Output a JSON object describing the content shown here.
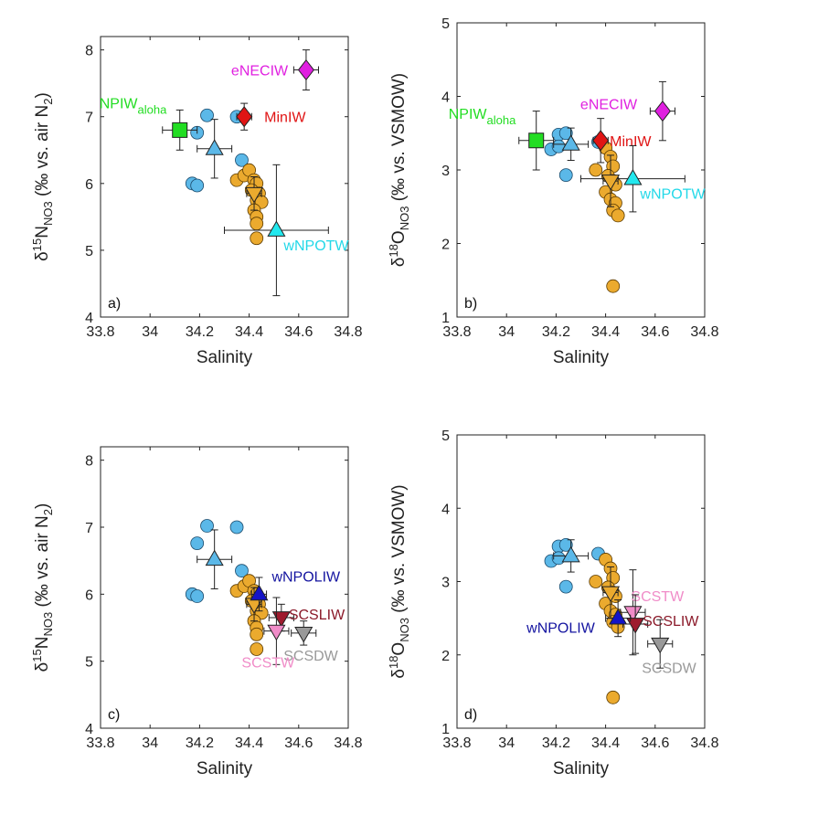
{
  "colors": {
    "orange_points": "#EBAA2E",
    "blue_points": "#5BB8E8",
    "NPIW_aloha": "#22DD22",
    "MinIW": "#E01414",
    "eNECIW": "#E020E0",
    "wNPOTW": "#22E8EE",
    "wNPOLIW": "#1414C8",
    "SCSLIW": "#9E1B2E",
    "SCSDW": "#999999",
    "SCSTW": "#F08CC8",
    "label_NPIW": "#22DD22",
    "label_MinIW": "#E01414",
    "label_eNECIW": "#E020E0",
    "label_wNPOTW": "#22D8E8",
    "label_wNPOLIW": "#1414A0",
    "label_SCSLIW": "#8B1A2A",
    "label_SCSDW": "#999999",
    "label_SCSTW": "#F08CC8"
  },
  "chart_data": [
    {
      "type": "scatter",
      "panel_label": "a)",
      "xlabel": "Salinity",
      "ylabel": {
        "pre": "δ",
        "sup": "15",
        "main": "N",
        "sub": "NO3",
        "unit": " (‰ vs. air N",
        "unit_sub": "2",
        "close": ")"
      },
      "xlim": [
        33.8,
        34.8
      ],
      "ylim": [
        4,
        8.2
      ],
      "xticks": [
        "33.8",
        "34",
        "34.2",
        "34.4",
        "34.6",
        "34.8"
      ],
      "yticks": [
        "4",
        "5",
        "6",
        "7",
        "8"
      ],
      "orange_points": [
        [
          34.35,
          6.05
        ],
        [
          34.38,
          6.12
        ],
        [
          34.4,
          6.2
        ],
        [
          34.42,
          6.05
        ],
        [
          34.43,
          6.0
        ],
        [
          34.41,
          5.9
        ],
        [
          34.44,
          5.85
        ],
        [
          34.43,
          5.75
        ],
        [
          34.45,
          5.72
        ],
        [
          34.42,
          5.6
        ],
        [
          34.43,
          5.5
        ],
        [
          34.43,
          5.4
        ],
        [
          34.43,
          5.18
        ]
      ],
      "blue_points": [
        [
          34.23,
          7.02
        ],
        [
          34.19,
          6.76
        ],
        [
          34.35,
          7.0
        ],
        [
          34.37,
          6.35
        ],
        [
          34.17,
          6.0
        ],
        [
          34.19,
          5.97
        ]
      ],
      "endmembers": [
        {
          "name": "NPIW",
          "sub": "aloha",
          "shape": "square",
          "color_key": "NPIW_aloha",
          "x": 34.12,
          "y": 6.8,
          "xerr": 0.07,
          "yerr": 0.3,
          "label_color_key": "label_NPIW"
        },
        {
          "name": "MinIW",
          "shape": "diamond",
          "color_key": "MinIW",
          "x": 34.38,
          "y": 7.0,
          "xerr": 0.03,
          "yerr": 0.2,
          "label_color_key": "label_MinIW"
        },
        {
          "name": "eNECIW",
          "shape": "diamond",
          "color_key": "eNECIW",
          "x": 34.63,
          "y": 7.7,
          "xerr": 0.05,
          "yerr": 0.3,
          "label_color_key": "label_eNECIW"
        },
        {
          "name": "wNPOTW",
          "shape": "triangle-up",
          "color_key": "wNPOTW",
          "x": 34.51,
          "y": 5.3,
          "xerr": 0.21,
          "yerr": 0.98,
          "label_color_key": "label_wNPOTW"
        },
        {
          "name": "",
          "shape": "triangle-up",
          "color_key": "blue_points",
          "x": 34.26,
          "y": 6.52,
          "xerr": 0.07,
          "yerr": 0.44
        },
        {
          "name": "",
          "shape": "triangle-down",
          "color_key": "orange_points",
          "x": 34.42,
          "y": 5.85,
          "xerr": 0.03,
          "yerr": 0.25
        }
      ]
    },
    {
      "type": "scatter",
      "panel_label": "b)",
      "xlabel": "Salinity",
      "ylabel": {
        "pre": "δ",
        "sup": "18",
        "main": "O",
        "sub": "NO3",
        "unit": " (‰ vs. VSMOW)",
        "unit_sub": "",
        "close": ""
      },
      "xlim": [
        33.8,
        34.8
      ],
      "ylim": [
        1,
        5
      ],
      "xticks": [
        "33.8",
        "34",
        "34.2",
        "34.4",
        "34.6",
        "34.8"
      ],
      "yticks": [
        "1",
        "2",
        "3",
        "4",
        "5"
      ],
      "orange_points": [
        [
          34.36,
          3.0
        ],
        [
          34.4,
          3.3
        ],
        [
          34.42,
          3.18
        ],
        [
          34.43,
          3.05
        ],
        [
          34.41,
          2.92
        ],
        [
          34.43,
          2.85
        ],
        [
          34.44,
          2.8
        ],
        [
          34.4,
          2.7
        ],
        [
          34.42,
          2.6
        ],
        [
          34.44,
          2.55
        ],
        [
          34.43,
          2.45
        ],
        [
          34.45,
          2.38
        ],
        [
          34.43,
          1.42
        ]
      ],
      "blue_points": [
        [
          34.21,
          3.48
        ],
        [
          34.24,
          3.5
        ],
        [
          34.18,
          3.28
        ],
        [
          34.21,
          3.32
        ],
        [
          34.37,
          3.38
        ],
        [
          34.24,
          2.93
        ]
      ],
      "endmembers": [
        {
          "name": "NPIW",
          "sub": "aloha",
          "shape": "square",
          "color_key": "NPIW_aloha",
          "x": 34.12,
          "y": 3.4,
          "xerr": 0.07,
          "yerr": 0.4,
          "label_color_key": "label_NPIW"
        },
        {
          "name": "MinIW",
          "shape": "diamond",
          "color_key": "MinIW",
          "x": 34.38,
          "y": 3.4,
          "xerr": 0.03,
          "yerr": 0.3,
          "label_color_key": "label_MinIW"
        },
        {
          "name": "eNECIW",
          "shape": "diamond",
          "color_key": "eNECIW",
          "x": 34.63,
          "y": 3.8,
          "xerr": 0.05,
          "yerr": 0.4,
          "label_color_key": "label_eNECIW"
        },
        {
          "name": "wNPOTW",
          "shape": "triangle-up",
          "color_key": "wNPOTW",
          "x": 34.51,
          "y": 2.88,
          "xerr": 0.21,
          "yerr": 0.45,
          "label_color_key": "label_wNPOTW"
        },
        {
          "name": "",
          "shape": "triangle-up",
          "color_key": "blue_points",
          "x": 34.26,
          "y": 3.35,
          "xerr": 0.07,
          "yerr": 0.22
        },
        {
          "name": "",
          "shape": "triangle-down",
          "color_key": "orange_points",
          "x": 34.42,
          "y": 2.85,
          "xerr": 0.03,
          "yerr": 0.35
        }
      ]
    },
    {
      "type": "scatter",
      "panel_label": "c)",
      "xlabel": "Salinity",
      "ylabel": {
        "pre": "δ",
        "sup": "15",
        "main": "N",
        "sub": "NO3",
        "unit": " (‰ vs. air N",
        "unit_sub": "2",
        "close": ")"
      },
      "xlim": [
        33.8,
        34.8
      ],
      "ylim": [
        4,
        8.2
      ],
      "xticks": [
        "33.8",
        "34",
        "34.2",
        "34.4",
        "34.6",
        "34.8"
      ],
      "yticks": [
        "4",
        "5",
        "6",
        "7",
        "8"
      ],
      "orange_points": [
        [
          34.35,
          6.05
        ],
        [
          34.38,
          6.12
        ],
        [
          34.4,
          6.2
        ],
        [
          34.42,
          6.05
        ],
        [
          34.43,
          6.0
        ],
        [
          34.41,
          5.9
        ],
        [
          34.44,
          5.85
        ],
        [
          34.43,
          5.75
        ],
        [
          34.45,
          5.72
        ],
        [
          34.42,
          5.6
        ],
        [
          34.43,
          5.5
        ],
        [
          34.43,
          5.4
        ],
        [
          34.43,
          5.18
        ]
      ],
      "blue_points": [
        [
          34.23,
          7.02
        ],
        [
          34.19,
          6.76
        ],
        [
          34.35,
          7.0
        ],
        [
          34.37,
          6.35
        ],
        [
          34.17,
          6.0
        ],
        [
          34.19,
          5.97
        ]
      ],
      "endmembers": [
        {
          "name": "",
          "shape": "triangle-up",
          "color_key": "blue_points",
          "x": 34.26,
          "y": 6.52,
          "xerr": 0.07,
          "yerr": 0.44
        },
        {
          "name": "",
          "shape": "triangle-down",
          "color_key": "orange_points",
          "x": 34.42,
          "y": 5.85,
          "xerr": 0.03,
          "yerr": 0.25
        },
        {
          "name": "wNPOLIW",
          "shape": "triangle-up",
          "color_key": "wNPOLIW",
          "x": 34.44,
          "y": 6.0,
          "xerr": 0.03,
          "yerr": 0.25,
          "label_color_key": "label_wNPOLIW"
        },
        {
          "name": "SCSLIW",
          "shape": "triangle-down",
          "color_key": "SCSLIW",
          "x": 34.53,
          "y": 5.65,
          "xerr": 0.05,
          "yerr": 0.2,
          "label_color_key": "label_SCSLIW"
        },
        {
          "name": "SCSDW",
          "shape": "triangle-down",
          "color_key": "SCSDW",
          "x": 34.62,
          "y": 5.42,
          "xerr": 0.05,
          "yerr": 0.18,
          "label_color_key": "label_SCSDW"
        },
        {
          "name": "SCSTW",
          "shape": "triangle-down",
          "color_key": "SCSTW",
          "x": 34.51,
          "y": 5.45,
          "xerr": 0.05,
          "yerr": 0.5,
          "label_color_key": "label_SCSTW"
        }
      ]
    },
    {
      "type": "scatter",
      "panel_label": "d)",
      "xlabel": "Salinity",
      "ylabel": {
        "pre": "δ",
        "sup": "18",
        "main": "O",
        "sub": "NO3",
        "unit": " (‰ vs. VSMOW)",
        "unit_sub": "",
        "close": ""
      },
      "xlim": [
        33.8,
        34.8
      ],
      "ylim": [
        1,
        5
      ],
      "xticks": [
        "33.8",
        "34",
        "34.2",
        "34.4",
        "34.6",
        "34.8"
      ],
      "yticks": [
        "1",
        "2",
        "3",
        "4",
        "5"
      ],
      "orange_points": [
        [
          34.36,
          3.0
        ],
        [
          34.4,
          3.3
        ],
        [
          34.42,
          3.18
        ],
        [
          34.43,
          3.05
        ],
        [
          34.41,
          2.92
        ],
        [
          34.43,
          2.85
        ],
        [
          34.44,
          2.8
        ],
        [
          34.4,
          2.7
        ],
        [
          34.42,
          2.6
        ],
        [
          34.44,
          2.55
        ],
        [
          34.43,
          2.45
        ],
        [
          34.45,
          2.38
        ],
        [
          34.43,
          1.42
        ]
      ],
      "blue_points": [
        [
          34.21,
          3.48
        ],
        [
          34.24,
          3.5
        ],
        [
          34.18,
          3.28
        ],
        [
          34.21,
          3.32
        ],
        [
          34.37,
          3.38
        ],
        [
          34.24,
          2.93
        ]
      ],
      "endmembers": [
        {
          "name": "",
          "shape": "triangle-up",
          "color_key": "blue_points",
          "x": 34.26,
          "y": 3.35,
          "xerr": 0.07,
          "yerr": 0.22
        },
        {
          "name": "",
          "shape": "triangle-down",
          "color_key": "orange_points",
          "x": 34.42,
          "y": 2.85,
          "xerr": 0.03,
          "yerr": 0.35
        },
        {
          "name": "SCSTW",
          "shape": "triangle-down",
          "color_key": "SCSTW",
          "x": 34.51,
          "y": 2.58,
          "xerr": 0.05,
          "yerr": 0.58,
          "label_color_key": "label_SCSTW"
        },
        {
          "name": "SCSLIW",
          "shape": "triangle-down",
          "color_key": "SCSLIW",
          "x": 34.52,
          "y": 2.42,
          "xerr": 0.05,
          "yerr": 0.4,
          "label_color_key": "label_SCSLIW"
        },
        {
          "name": "wNPOLIW",
          "shape": "triangle-up",
          "color_key": "wNPOLIW",
          "x": 34.45,
          "y": 2.5,
          "xerr": 0.05,
          "yerr": 0.25,
          "label_color_key": "label_wNPOLIW"
        },
        {
          "name": "SCSDW",
          "shape": "triangle-down",
          "color_key": "SCSDW",
          "x": 34.62,
          "y": 2.15,
          "xerr": 0.05,
          "yerr": 0.33,
          "label_color_key": "label_SCSDW"
        }
      ]
    }
  ]
}
